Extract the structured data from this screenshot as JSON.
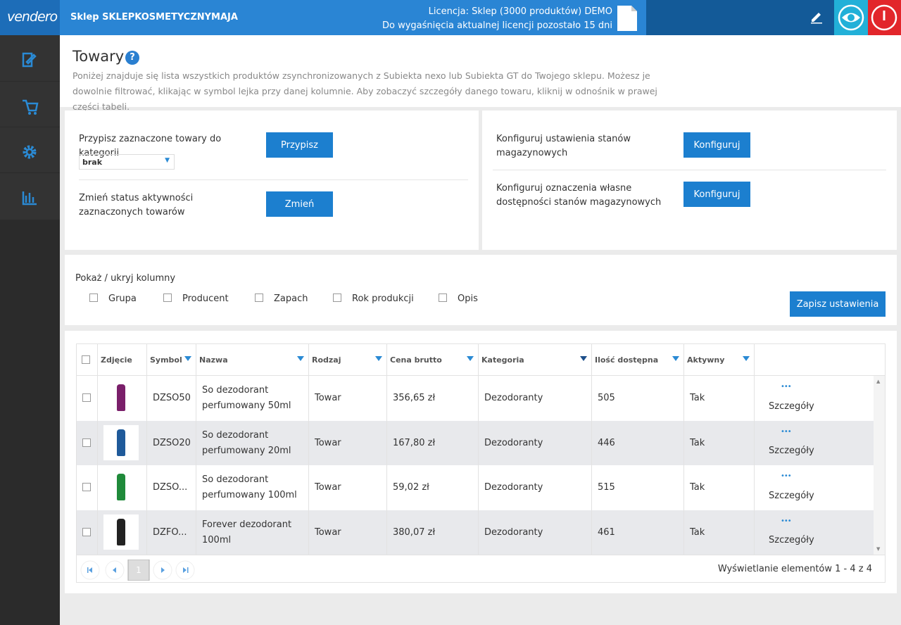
{
  "header": {
    "logo": "vendero",
    "shop": "Sklep SKLEPKOSMETYCZNYMAJA",
    "license": "Licencja: Sklep (3000 produktów) DEMO",
    "expiry": "Do wygaśnięcia aktualnej licencji pozostało 15 dni"
  },
  "page": {
    "title": "Towary",
    "help": "?",
    "description": "Poniżej znajduje się lista wszystkich produktów zsynchronizowanych z Subiekta nexo lub Subiekta GT do Twojego sklepu. Możesz je dowolnie filtrować, klikając w symbol lejka przy danej kolumnie. Aby zobaczyć szczegóły danego towaru, kliknij w odnośnik w prawej części tabeli."
  },
  "actions": {
    "assign_label": "Przypisz zaznaczone towary do kategorii",
    "assign_button": "Przypisz",
    "category_select": "brak",
    "status_label": "Zmień status aktywności zaznaczonych towarów",
    "status_button": "Zmień",
    "stock_label": "Konfiguruj ustawienia stanów magazynowych",
    "stock_button": "Konfiguruj",
    "availability_label": "Konfiguruj oznaczenia własne dostępności stanów magazynowych",
    "availability_button": "Konfiguruj"
  },
  "columns_panel": {
    "title": "Pokaż / ukryj kolumny",
    "options": [
      "Grupa",
      "Producent",
      "Zapach",
      "Rok produkcji",
      "Opis"
    ],
    "save_button": "Zapisz ustawienia"
  },
  "table": {
    "headers": [
      "Zdjęcie",
      "Symbol",
      "Nazwa",
      "Rodzaj",
      "Cena brutto",
      "Kategoria",
      "Ilość dostępna",
      "Aktywny"
    ],
    "rows": [
      {
        "symbol": "DZSO50",
        "name": "So dezodorant perfumowany 50ml",
        "kind": "Towar",
        "price": "356,65 zł",
        "category": "Dezodoranty",
        "qty": "505",
        "active": "Tak",
        "menu": "•••",
        "details": "Szczegóły"
      },
      {
        "symbol": "DZSO20",
        "name": "So dezodorant perfumowany 20ml",
        "kind": "Towar",
        "price": "167,80 zł",
        "category": "Dezodoranty",
        "qty": "446",
        "active": "Tak",
        "menu": "•••",
        "details": "Szczegóły"
      },
      {
        "symbol": "DZSO...",
        "name": "So dezodorant perfumowany 100ml",
        "kind": "Towar",
        "price": "59,02 zł",
        "category": "Dezodoranty",
        "qty": "515",
        "active": "Tak",
        "menu": "•••",
        "details": "Szczegóły"
      },
      {
        "symbol": "DZFO...",
        "name": "Forever dezodorant 100ml",
        "kind": "Towar",
        "price": "380,07 zł",
        "category": "Dezodoranty",
        "qty": "461",
        "active": "Tak",
        "menu": "•••",
        "details": "Szczegóły"
      }
    ]
  },
  "pagination": {
    "page": "1",
    "summary": "Wyświetlanie elementów 1 - 4 z 4"
  }
}
